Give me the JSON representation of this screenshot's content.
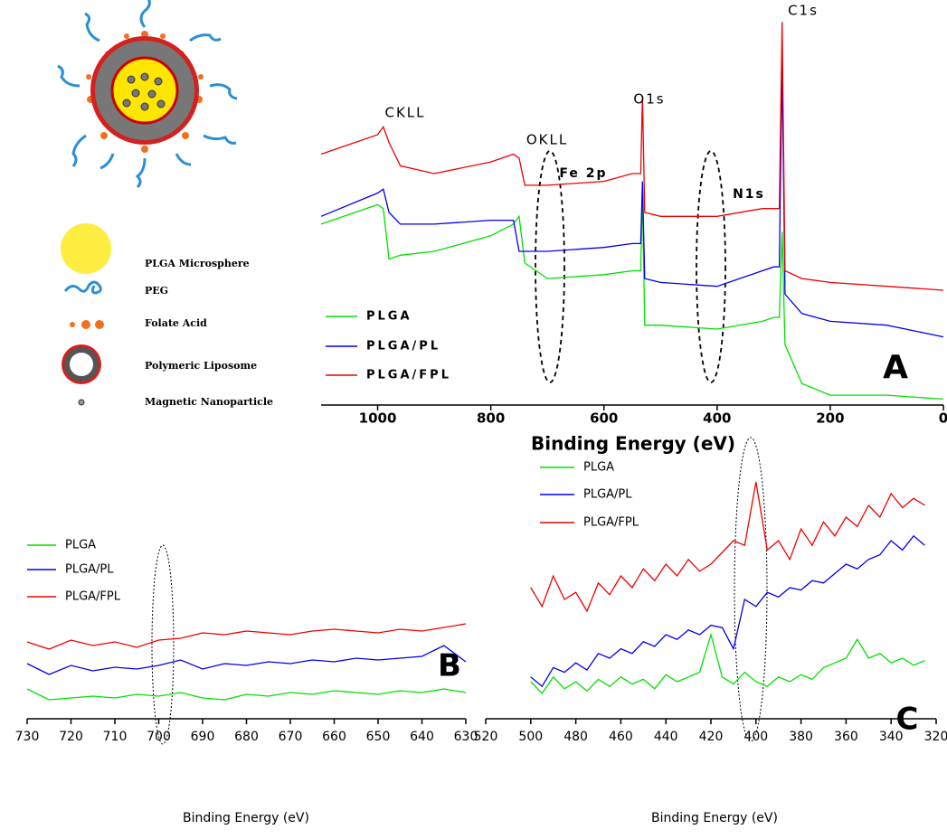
{
  "schematic": {
    "labels": [
      "PLGA Microsphere",
      "PEG",
      "Folate Acid",
      "Polymeric Liposome",
      "Magnetic Nanoparticle"
    ]
  },
  "chart_data": [
    {
      "type": "line",
      "panel_label": "A",
      "xlabel": "Binding Energy (eV)",
      "annotations": [
        "CKLL",
        "OKLL",
        "O1s",
        "Fe 2p",
        "N1s",
        "C1s"
      ],
      "x": [
        1100,
        1000,
        990,
        980,
        960,
        900,
        800,
        760,
        750,
        740,
        700,
        600,
        550,
        540,
        535,
        532,
        528,
        500,
        400,
        320,
        300,
        290,
        285,
        280,
        250,
        200,
        100,
        0
      ],
      "xlim": [
        1100,
        0
      ],
      "xticks": [
        1000,
        800,
        600,
        400,
        200,
        0
      ],
      "ylim": [
        0,
        100
      ],
      "series": [
        {
          "name": "PLGA",
          "color": "#00e000",
          "values": [
            47,
            52,
            51,
            38,
            39,
            40,
            44,
            47,
            49,
            37,
            33,
            34,
            35,
            35,
            35,
            56,
            21,
            21,
            20,
            22,
            23,
            23,
            45,
            16,
            6,
            3,
            3,
            2
          ]
        },
        {
          "name": "PLGA/PL",
          "color": "#0000ee",
          "values": [
            49,
            55,
            56,
            50,
            47,
            47,
            48,
            48,
            40,
            40,
            40,
            41,
            42,
            42,
            42,
            58,
            33,
            32,
            31,
            35,
            36,
            36,
            88,
            29,
            24,
            22,
            21,
            18
          ]
        },
        {
          "name": "PLGA/FPL",
          "color": "#ee0000",
          "values": [
            65,
            70,
            72,
            68,
            62,
            60,
            63,
            65,
            64,
            57,
            57,
            58,
            60,
            60,
            60,
            80,
            50,
            49,
            49,
            51,
            51,
            51,
            99,
            35,
            33,
            32,
            31,
            30
          ]
        }
      ]
    },
    {
      "type": "line",
      "panel_label": "B",
      "xlabel": "Binding Energy (eV)",
      "x": [
        730,
        725,
        720,
        715,
        710,
        705,
        700,
        695,
        690,
        685,
        680,
        675,
        670,
        665,
        660,
        655,
        650,
        645,
        640,
        635,
        630
      ],
      "xlim": [
        730,
        630
      ],
      "xticks": [
        730,
        720,
        710,
        700,
        690,
        680,
        670,
        660,
        650,
        640,
        630
      ],
      "ylim": [
        0,
        100
      ],
      "series": [
        {
          "name": "PLGA",
          "color": "#00e000",
          "values": [
            14,
            8,
            9,
            10,
            9,
            11,
            10,
            12,
            9,
            8,
            11,
            10,
            12,
            11,
            13,
            12,
            11,
            13,
            12,
            14,
            12
          ]
        },
        {
          "name": "PLGA/PL",
          "color": "#0000ee",
          "values": [
            28,
            22,
            27,
            24,
            26,
            25,
            27,
            30,
            25,
            28,
            27,
            29,
            28,
            30,
            29,
            31,
            30,
            31,
            32,
            38,
            29
          ]
        },
        {
          "name": "PLGA/FPL",
          "color": "#ee0000",
          "values": [
            40,
            36,
            41,
            38,
            40,
            37,
            41,
            42,
            45,
            44,
            46,
            45,
            44,
            46,
            47,
            46,
            45,
            47,
            46,
            48,
            50
          ]
        }
      ]
    },
    {
      "type": "line",
      "panel_label": "C",
      "xlabel": "Binding Energy (eV)",
      "x": [
        500,
        495,
        490,
        485,
        480,
        475,
        470,
        465,
        460,
        455,
        450,
        445,
        440,
        435,
        430,
        425,
        420,
        415,
        410,
        405,
        400,
        395,
        390,
        385,
        380,
        375,
        370,
        365,
        360,
        355,
        350,
        345,
        340,
        335,
        330,
        325
      ],
      "xlim": [
        520,
        320
      ],
      "xticks": [
        520,
        500,
        480,
        460,
        440,
        420,
        400,
        380,
        360,
        340,
        320
      ],
      "ylim": [
        0,
        100
      ],
      "series": [
        {
          "name": "PLGA",
          "color": "#00e000",
          "values": [
            10,
            5,
            12,
            7,
            10,
            6,
            11,
            8,
            12,
            9,
            11,
            7,
            13,
            10,
            12,
            14,
            30,
            12,
            9,
            14,
            10,
            8,
            12,
            10,
            13,
            11,
            16,
            18,
            20,
            28,
            20,
            22,
            18,
            20,
            17,
            19
          ]
        },
        {
          "name": "PLGA/PL",
          "color": "#0000ee",
          "values": [
            12,
            8,
            16,
            14,
            18,
            15,
            22,
            20,
            24,
            22,
            27,
            25,
            30,
            28,
            32,
            30,
            34,
            33,
            24,
            45,
            42,
            48,
            46,
            50,
            49,
            53,
            52,
            56,
            60,
            58,
            62,
            64,
            70,
            66,
            72,
            68
          ]
        },
        {
          "name": "PLGA/FPL",
          "color": "#ee0000",
          "values": [
            50,
            42,
            55,
            45,
            48,
            40,
            52,
            47,
            55,
            50,
            58,
            53,
            60,
            55,
            62,
            57,
            60,
            65,
            70,
            68,
            95,
            66,
            70,
            62,
            75,
            68,
            78,
            72,
            80,
            76,
            85,
            80,
            90,
            84,
            88,
            85
          ]
        }
      ]
    }
  ]
}
